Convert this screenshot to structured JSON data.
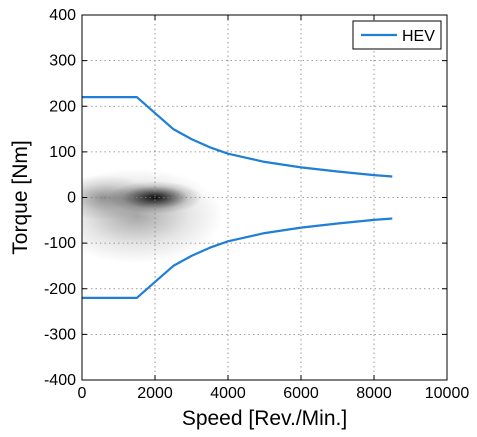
{
  "chart_data": {
    "type": "line",
    "title": "",
    "xlabel": "Speed [Rev./Min.]",
    "ylabel": "Torque [Nm]",
    "xlim": [
      0,
      10000
    ],
    "ylim": [
      -400,
      400
    ],
    "xticks": [
      0,
      2000,
      4000,
      6000,
      8000,
      10000
    ],
    "yticks": [
      -400,
      -300,
      -200,
      -100,
      0,
      100,
      200,
      300,
      400
    ],
    "grid": "dotted",
    "legend_position": "top-right",
    "series_color": "#1f7fd6",
    "series": [
      {
        "name": "HEV",
        "x": [
          0,
          1500,
          2000,
          2500,
          3000,
          3500,
          4000,
          5000,
          6000,
          7000,
          8000,
          8500
        ],
        "y": [
          220,
          220,
          185,
          150,
          128,
          110,
          96,
          78,
          66,
          57,
          49,
          46
        ]
      },
      {
        "name": "",
        "x": [
          0,
          1500,
          2000,
          2500,
          3000,
          3500,
          4000,
          5000,
          6000,
          7000,
          8000,
          8500
        ],
        "y": [
          -220,
          -220,
          -185,
          -150,
          -128,
          -110,
          -96,
          -78,
          -66,
          -57,
          -49,
          -46
        ]
      }
    ],
    "density_cloud": {
      "description_value_center": [
        2000,
        0
      ],
      "x_range": [
        0,
        4200
      ],
      "y_range": [
        -150,
        60
      ]
    }
  }
}
